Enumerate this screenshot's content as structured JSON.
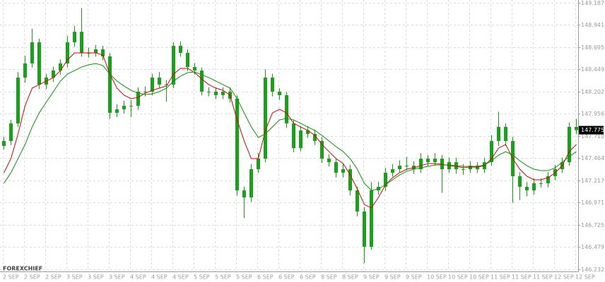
{
  "chart_data": {
    "type": "candlestick",
    "watermark": "FOREXCHIEF",
    "candle_color": "#17a317",
    "ylim": [
      146.232,
      149.187
    ],
    "yticks": [
      149.187,
      148.941,
      148.695,
      148.449,
      148.202,
      147.956,
      {
        "value": 147.71,
        "label": "147.710"
      },
      147.464,
      147.217,
      146.971,
      146.725,
      146.479,
      146.232
    ],
    "grid": true,
    "x_labels": [
      "2 SEP",
      "2 SEP",
      "2 SEP",
      "3 SEP",
      "3 SEP",
      "3 SEP",
      "4 SEP",
      "4 SEP",
      "4 SEP",
      "5 SEP",
      "5 SEP",
      "5 SEP",
      "6 SEP",
      "6 SEP",
      "6 SEP",
      "8 SEP",
      "8 SEP",
      "9 SEP",
      "9 SEP",
      "9 SEP",
      "10 SEP",
      "10 SEP",
      "10 SEP",
      "11 SEP",
      "11 SEP",
      "11 SEP",
      "12 SEP",
      "12 SEP"
    ],
    "open": [
      147.6,
      147.655,
      147.85,
      148.358,
      148.515,
      148.749,
      148.28,
      148.358,
      148.436,
      148.515,
      148.749,
      148.866,
      148.632,
      148.632,
      148.671,
      148.593,
      147.967,
      148.006,
      148.045,
      148.045,
      148.202,
      148.202,
      148.358,
      148.28,
      148.28,
      148.71,
      148.632,
      148.475,
      148.436,
      148.202,
      148.202,
      148.163,
      148.202,
      148.124,
      147.107,
      147.029,
      147.342,
      147.459,
      148.358,
      148.202,
      148.163,
      147.85,
      147.576,
      147.772,
      147.733,
      147.655,
      147.459,
      147.42,
      147.303,
      147.342,
      147.107,
      146.873,
      146.482,
      147.107,
      147.147,
      147.303,
      147.342,
      147.381,
      147.381,
      147.342,
      147.459,
      147.42,
      147.459,
      147.342,
      147.42,
      147.342,
      147.342,
      147.381,
      147.342,
      147.42,
      147.655,
      147.811,
      147.655,
      147.264,
      147.147,
      147.107,
      147.186,
      147.186,
      147.264,
      147.342,
      147.42,
      147.811
    ],
    "high": [
      147.7,
      147.89,
      148.42,
      148.6,
      148.9,
      148.79,
      148.4,
      148.48,
      148.56,
      148.82,
      148.93,
      149.13,
      148.69,
      148.72,
      148.71,
      148.63,
      148.06,
      148.1,
      148.11,
      148.25,
      148.26,
      148.4,
      148.42,
      148.33,
      148.75,
      148.76,
      148.67,
      148.52,
      148.47,
      148.25,
      148.25,
      148.25,
      148.25,
      148.16,
      147.15,
      147.4,
      147.52,
      148.45,
      148.4,
      148.24,
      148.2,
      147.89,
      147.82,
      147.82,
      147.78,
      147.7,
      147.51,
      147.46,
      147.4,
      147.39,
      147.15,
      146.92,
      147.2,
      147.2,
      147.36,
      147.4,
      147.44,
      147.48,
      147.43,
      147.52,
      147.5,
      147.52,
      147.5,
      147.47,
      147.47,
      147.4,
      147.43,
      147.42,
      147.47,
      147.72,
      147.98,
      147.85,
      147.7,
      147.31,
      147.2,
      147.24,
      147.24,
      147.31,
      147.39,
      147.47,
      147.86,
      147.9
    ],
    "low": [
      147.56,
      147.61,
      147.81,
      148.3,
      148.47,
      148.23,
      148.23,
      148.31,
      148.39,
      148.47,
      148.7,
      148.59,
      148.58,
      148.59,
      148.55,
      147.9,
      147.92,
      147.96,
      147.92,
      148.0,
      148.15,
      148.16,
      148.24,
      148.09,
      148.24,
      148.59,
      148.43,
      148.39,
      148.16,
      148.15,
      148.12,
      148.12,
      148.08,
      147.05,
      146.8,
      146.98,
      147.3,
      147.42,
      148.15,
      148.11,
      147.8,
      147.53,
      147.54,
      147.69,
      147.61,
      147.41,
      147.37,
      147.25,
      147.25,
      147.05,
      146.82,
      146.3,
      146.45,
      147.06,
      147.1,
      147.26,
      147.3,
      147.33,
      147.29,
      147.3,
      147.37,
      147.38,
      147.08,
      147.3,
      147.29,
      147.28,
      147.3,
      147.3,
      147.3,
      147.38,
      147.6,
      147.6,
      146.97,
      147.0,
      147.04,
      147.06,
      147.14,
      147.14,
      147.22,
      147.3,
      147.38,
      147.73
    ],
    "close": [
      147.655,
      147.85,
      148.358,
      148.515,
      148.749,
      148.28,
      148.358,
      148.436,
      148.515,
      148.749,
      148.866,
      148.632,
      148.632,
      148.671,
      148.593,
      147.967,
      148.006,
      148.045,
      148.045,
      148.202,
      148.202,
      148.358,
      148.28,
      148.28,
      148.71,
      148.632,
      148.475,
      148.436,
      148.202,
      148.202,
      148.163,
      148.202,
      148.124,
      147.107,
      147.029,
      147.342,
      147.459,
      148.358,
      148.202,
      148.163,
      147.85,
      147.576,
      147.772,
      147.733,
      147.655,
      147.459,
      147.42,
      147.303,
      147.342,
      147.107,
      146.873,
      146.482,
      147.107,
      147.147,
      147.303,
      147.342,
      147.381,
      147.381,
      147.342,
      147.459,
      147.42,
      147.459,
      147.342,
      147.42,
      147.342,
      147.342,
      147.381,
      147.342,
      147.42,
      147.655,
      147.811,
      147.655,
      147.264,
      147.147,
      147.107,
      147.186,
      147.186,
      147.264,
      147.342,
      147.42,
      147.811,
      147.775
    ],
    "lines": [
      {
        "color": "#e00000",
        "values": [
          147.303,
          147.459,
          147.733,
          148.045,
          148.241,
          148.28,
          148.319,
          148.358,
          148.436,
          148.554,
          148.632,
          148.632,
          148.632,
          148.632,
          148.608,
          148.397,
          148.241,
          148.163,
          148.124,
          148.139,
          148.186,
          148.217,
          148.241,
          148.264,
          148.397,
          148.46,
          148.46,
          148.413,
          148.343,
          148.28,
          148.241,
          148.217,
          148.163,
          147.889,
          147.655,
          147.459,
          147.459,
          147.772,
          147.967,
          148.006,
          147.967,
          147.85,
          147.811,
          147.772,
          147.717,
          147.616,
          147.537,
          147.459,
          147.405,
          147.279,
          147.123,
          146.951,
          146.912,
          147.029,
          147.17,
          147.248,
          147.303,
          147.342,
          147.358,
          147.381,
          147.405,
          147.405,
          147.397,
          147.381,
          147.373,
          147.358,
          147.366,
          147.366,
          147.381,
          147.459,
          147.576,
          147.616,
          147.459,
          147.342,
          147.264,
          147.225,
          147.225,
          147.248,
          147.303,
          147.381,
          147.537,
          147.616
        ]
      },
      {
        "color": "#009a00",
        "values": [
          147.186,
          147.303,
          147.459,
          147.616,
          147.811,
          147.967,
          148.085,
          148.202,
          148.319,
          148.397,
          148.436,
          148.475,
          148.499,
          148.515,
          148.491,
          148.397,
          148.319,
          148.264,
          148.217,
          148.186,
          148.171,
          148.178,
          148.202,
          148.241,
          148.319,
          148.374,
          148.413,
          148.421,
          148.389,
          148.358,
          148.319,
          148.28,
          148.241,
          148.124,
          147.967,
          147.811,
          147.694,
          147.733,
          147.811,
          147.889,
          147.905,
          147.889,
          147.85,
          147.811,
          147.772,
          147.717,
          147.655,
          147.592,
          147.537,
          147.459,
          147.342,
          147.186,
          147.107,
          147.123,
          147.17,
          147.225,
          147.279,
          147.319,
          147.342,
          147.358,
          147.373,
          147.389,
          147.389,
          147.389,
          147.381,
          147.373,
          147.373,
          147.373,
          147.389,
          147.436,
          147.498,
          147.537,
          147.498,
          147.436,
          147.381,
          147.342,
          147.326,
          147.326,
          147.358,
          147.42,
          147.483,
          147.537
        ]
      }
    ]
  }
}
